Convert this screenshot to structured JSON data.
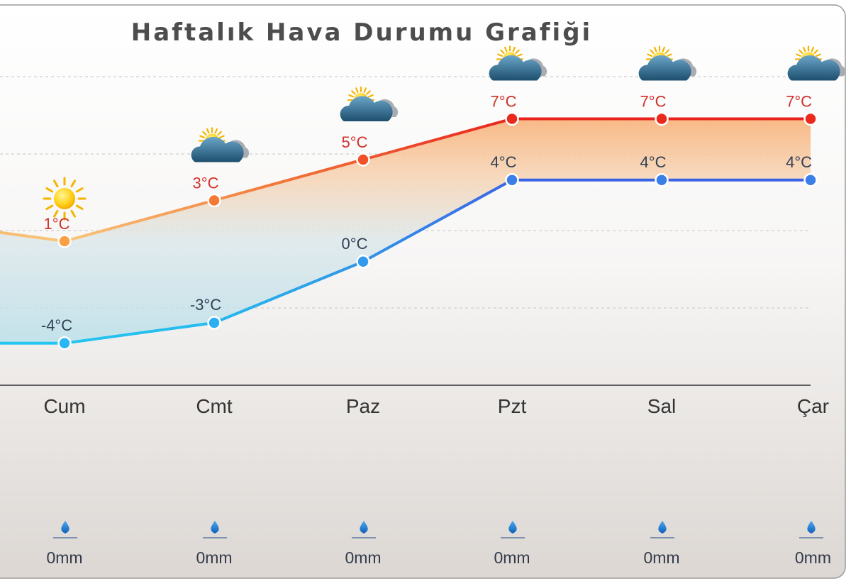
{
  "chart_data": {
    "type": "line",
    "title": "Haftalık Hava Durumu Grafiği",
    "categories": [
      "Cum",
      "Cmt",
      "Paz",
      "Pzt",
      "Sal",
      "Çar"
    ],
    "series": [
      {
        "values": [
          1,
          3,
          5,
          7,
          7,
          7
        ],
        "labels": [
          "1°C",
          "3°C",
          "5°C",
          "7°C",
          "7°C",
          "7°C"
        ],
        "color": "#e8211c"
      },
      {
        "values": [
          -4,
          -3,
          0,
          4,
          4,
          4
        ],
        "labels": [
          "-4°C",
          "-3°C",
          "0°C",
          "4°C",
          "4°C",
          "4°C"
        ],
        "color": "#2f6fe8"
      }
    ],
    "left_offscreen": {
      "high": 2,
      "low": -4
    },
    "icons": [
      "sun-icon",
      "partly-cloudy-icon",
      "partly-cloudy-icon",
      "partly-cloudy-icon",
      "partly-cloudy-icon",
      "partly-cloudy-icon"
    ],
    "precipitation": {
      "values": [
        0,
        0,
        0,
        0,
        0,
        0
      ],
      "labels": [
        "0mm",
        "0mm",
        "0mm",
        "0mm",
        "0mm",
        "0mm"
      ]
    },
    "grid": true,
    "colors": {
      "title": "#4d4d4d",
      "high_cold": "#f9c77a",
      "high_warm": "#e8211c",
      "low_cold": "#22c6f0",
      "low_warm": "#3a63e6",
      "axis": "#333333"
    }
  }
}
